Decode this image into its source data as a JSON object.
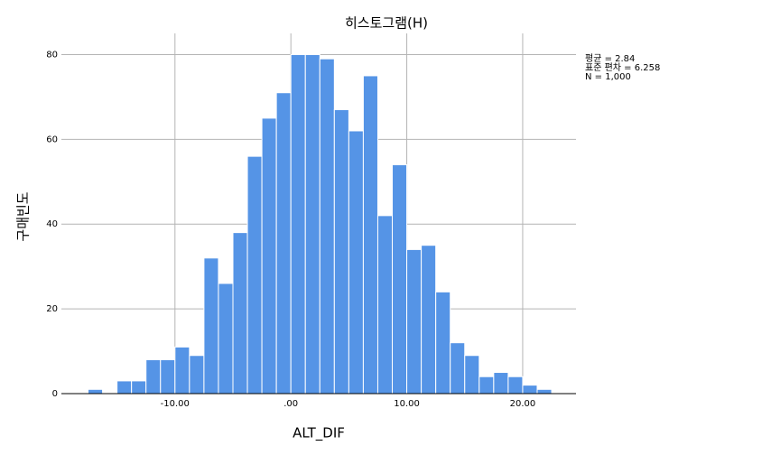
{
  "chart_data": {
    "type": "histogram",
    "title": "히스토그램(H)",
    "x_label": "ALT_DIF",
    "y_label": "구매빈도",
    "annotations": [
      "평균 = 2.84",
      "표준 편차 = 6.258",
      "N = 1,000"
    ],
    "bins": [
      -17.5,
      -16.25,
      -15,
      -13.75,
      -12.5,
      -11.25,
      -10,
      -8.75,
      -7.5,
      -6.25,
      -5,
      -3.75,
      -2.5,
      -1.25,
      0,
      1.25,
      2.5,
      3.75,
      5,
      6.25,
      7.5,
      8.75,
      10,
      11.25,
      12.5,
      13.75,
      15,
      16.25,
      17.5,
      18.75,
      20,
      21.25,
      22.5
    ],
    "values": [
      1,
      0,
      3,
      3,
      8,
      8,
      11,
      9,
      32,
      26,
      38,
      56,
      65,
      71,
      80,
      80,
      79,
      67,
      62,
      75,
      42,
      54,
      34,
      35,
      24,
      12,
      9,
      4,
      5,
      4,
      2,
      1
    ],
    "color": "#5594e6",
    "xlim": [
      -19.8,
      24.6
    ],
    "ylim": [
      0,
      85
    ],
    "xticks": [
      {
        "value": -10,
        "label": "-10.00"
      },
      {
        "value": 0,
        "label": ".00"
      },
      {
        "value": 10,
        "label": "10.00"
      },
      {
        "value": 20,
        "label": "20.00"
      }
    ],
    "yticks": [
      0,
      20,
      40,
      60,
      80
    ],
    "grid": true
  }
}
